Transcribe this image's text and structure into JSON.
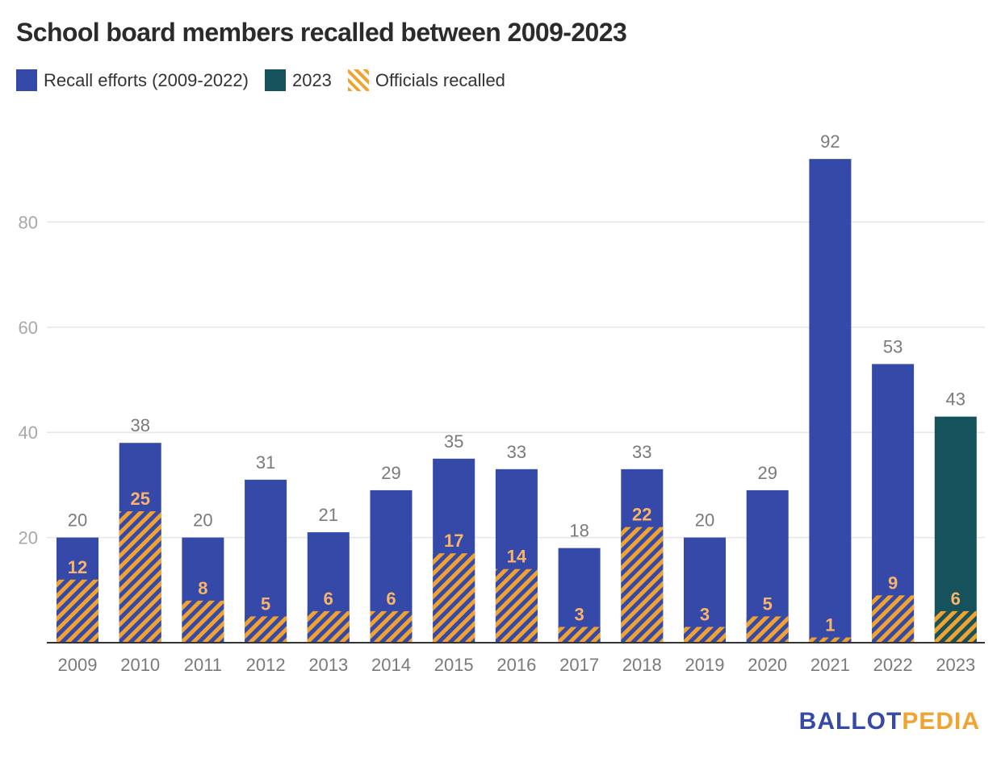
{
  "chart_data": {
    "type": "bar",
    "title": "School board members recalled between 2009-2023",
    "xlabel": "",
    "ylabel": "",
    "ylim": [
      0,
      100
    ],
    "yticks": [
      20,
      40,
      60,
      80
    ],
    "grid": true,
    "legend_position": "top-left",
    "legend": [
      {
        "label": "Recall efforts (2009-2022)",
        "color": "#3449a8",
        "pattern": "solid"
      },
      {
        "label": "2023",
        "color": "#16525b",
        "pattern": "solid"
      },
      {
        "label": "Officials recalled",
        "color": "#f1a22f",
        "pattern": "hatch"
      }
    ],
    "categories": [
      "2009",
      "2010",
      "2011",
      "2012",
      "2013",
      "2014",
      "2015",
      "2016",
      "2017",
      "2018",
      "2019",
      "2020",
      "2021",
      "2022",
      "2023"
    ],
    "series": [
      {
        "name": "Recall efforts",
        "values": [
          20,
          38,
          20,
          31,
          21,
          29,
          35,
          33,
          18,
          33,
          20,
          29,
          92,
          53,
          43
        ]
      },
      {
        "name": "Officials recalled",
        "values": [
          12,
          25,
          8,
          5,
          6,
          6,
          17,
          14,
          3,
          22,
          3,
          5,
          1,
          9,
          6
        ]
      }
    ],
    "highlight_category": "2023",
    "colors": {
      "recall": "#3449a8",
      "highlight": "#16525b",
      "hatch": "#f1a22f",
      "inner_label": "#f9b36a",
      "value_label": "#7a7a7a",
      "tick_label": "#a8a8a8",
      "grid": "#e6e6e6",
      "axis": "#333333"
    }
  },
  "logo": {
    "part1": "BALLOT",
    "part2": "PEDIA"
  }
}
